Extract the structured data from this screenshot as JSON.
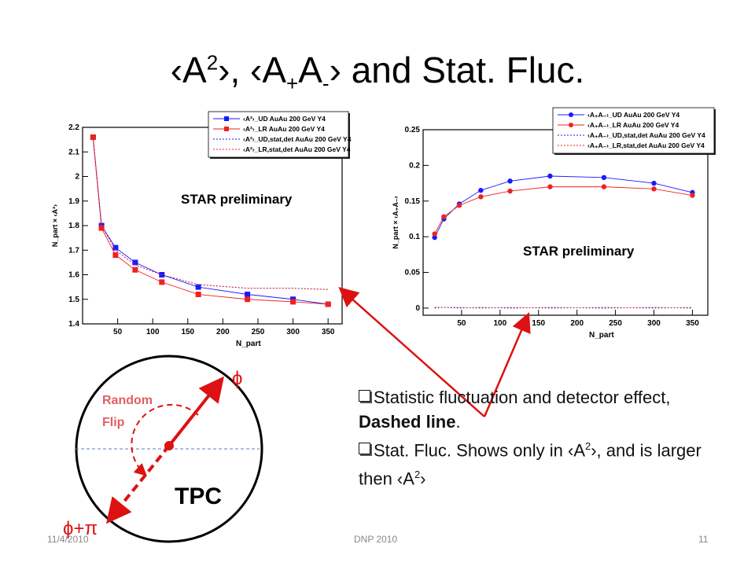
{
  "slide": {
    "title_main": "‹A",
    "title_sup1": "2",
    "title_mid": "›, ‹A",
    "title_sub1": "+",
    "title_A": "A",
    "title_sub2": "-",
    "title_end": "› and Stat. Fluc.",
    "footer_date": "11/4/2010",
    "footer_center": "DNP 2010",
    "footer_page": "11"
  },
  "colors": {
    "blue": "#1a1aff",
    "red": "#ee2222",
    "arrow": "#dd1111"
  },
  "bullets": {
    "b1_text": "Statistic fluctuation and detector effect, ",
    "b1_bold": "Dashed line",
    "b1_end": ".",
    "b2_a": "Stat. Fluc. Shows only in ‹A",
    "b2_sup": "2",
    "b2_b": "›, and is larger then ‹A",
    "b2_sup2": "2",
    "b2_c": "›"
  },
  "diagram": {
    "phi": "ϕ",
    "phi_pi": "ϕ+π",
    "random_flip_1": "Random",
    "random_flip_2": "Flip",
    "tpc": "TPC"
  },
  "chart_data": [
    {
      "type": "scatter",
      "prelim": "STAR preliminary",
      "ylabel": "N_part × ‹A²›",
      "xlabel": "N_part",
      "xlim": [
        0,
        370
      ],
      "ylim": [
        1.4,
        2.2
      ],
      "xticks": [
        "50",
        "100",
        "150",
        "200",
        "250",
        "300",
        "350"
      ],
      "yticks": [
        "1.4",
        "1.5",
        "1.6",
        "1.7",
        "1.8",
        "1.9",
        "2",
        "2.1",
        "2.2"
      ],
      "legend": [
        "‹A²›_UD AuAu 200 GeV Y4",
        "‹A²›_LR AuAu 200 GeV Y4",
        "‹A²›_UD,stat,det AuAu 200 GeV Y4",
        "‹A²›_LR,stat,det AuAu 200 GeV Y4"
      ],
      "x": [
        15,
        27,
        47,
        75,
        113,
        165,
        235,
        300,
        350
      ],
      "series": [
        {
          "name": "‹A²›_UD AuAu 200 GeV Y4",
          "values": [
            2.16,
            1.8,
            1.71,
            1.65,
            1.6,
            1.55,
            1.52,
            1.5,
            1.48
          ]
        },
        {
          "name": "‹A²›_LR AuAu 200 GeV Y4",
          "values": [
            2.16,
            1.79,
            1.68,
            1.62,
            1.57,
            1.52,
            1.5,
            1.49,
            1.48
          ]
        },
        {
          "name": "‹A²›_UD,stat,det AuAu 200 GeV Y4",
          "values": [
            2.15,
            1.8,
            1.7,
            1.64,
            1.6,
            1.56,
            1.545,
            1.545,
            1.54
          ]
        },
        {
          "name": "‹A²›_LR,stat,det AuAu 200 GeV Y4",
          "values": [
            2.15,
            1.8,
            1.7,
            1.64,
            1.6,
            1.56,
            1.545,
            1.545,
            1.54
          ]
        }
      ]
    },
    {
      "type": "scatter",
      "prelim": "STAR preliminary",
      "ylabel": "N_part × ‹A₊A₋›",
      "xlabel": "N_part",
      "xlim": [
        0,
        370
      ],
      "ylim": [
        -0.01,
        0.25
      ],
      "xticks": [
        "50",
        "100",
        "150",
        "200",
        "250",
        "300",
        "350"
      ],
      "yticks": [
        "0",
        "0.05",
        "0.1",
        "0.15",
        "0.2",
        "0.25"
      ],
      "legend": [
        "‹A₊A₋›_UD AuAu 200 GeV Y4",
        "‹A₊A₋›_LR AuAu 200 GeV Y4",
        "‹A₊A₋›_UD,stat,det AuAu 200 GeV Y4",
        "‹A₊A₋›_LR,stat,det AuAu 200 GeV Y4"
      ],
      "x": [
        15,
        27,
        47,
        75,
        113,
        165,
        235,
        300,
        350
      ],
      "series": [
        {
          "name": "‹A₊A₋›_UD AuAu 200 GeV Y4",
          "values": [
            0.099,
            0.125,
            0.146,
            0.165,
            0.178,
            0.185,
            0.183,
            0.175,
            0.162
          ]
        },
        {
          "name": "‹A₊A₋›_LR AuAu 200 GeV Y4",
          "values": [
            0.104,
            0.128,
            0.144,
            0.156,
            0.164,
            0.17,
            0.17,
            0.167,
            0.158
          ]
        },
        {
          "name": "‹A₊A₋›_UD,stat,det AuAu 200 GeV Y4",
          "values": [
            0.001,
            0.001,
            0.0,
            0.001,
            0.0,
            0.001,
            0.0,
            0.001,
            0.0
          ]
        },
        {
          "name": "‹A₊A₋›_LR,stat,det AuAu 200 GeV Y4",
          "values": [
            0.0,
            0.001,
            0.001,
            0.0,
            0.001,
            0.0,
            0.001,
            0.0,
            0.001
          ]
        }
      ]
    }
  ]
}
